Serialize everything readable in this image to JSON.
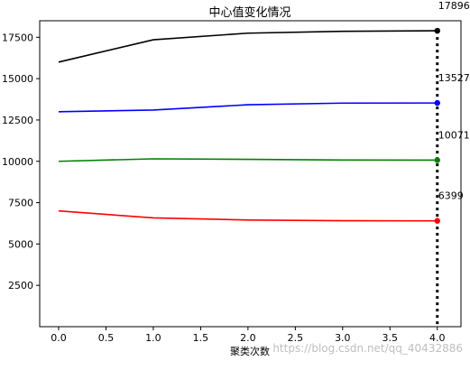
{
  "chart_data": {
    "type": "line",
    "title": "中心值变化情况",
    "xlabel": "聚类次数",
    "ylabel": "",
    "x": [
      0,
      1,
      2,
      3,
      4
    ],
    "xlim": [
      -0.2,
      4.25
    ],
    "ylim": [
      0,
      18500
    ],
    "x_ticks": [
      0.0,
      0.5,
      1.0,
      1.5,
      2.0,
      2.5,
      3.0,
      3.5,
      4.0
    ],
    "x_tick_labels": [
      "0.0",
      "0.5",
      "1.0",
      "1.5",
      "2.0",
      "2.5",
      "3.0",
      "3.5",
      "4.0"
    ],
    "y_ticks": [
      2500,
      5000,
      7500,
      10000,
      12500,
      15000,
      17500
    ],
    "y_tick_labels": [
      "2500",
      "5000",
      "7500",
      "10000",
      "12500",
      "15000",
      "17500"
    ],
    "series": [
      {
        "color": "#000000",
        "values": [
          16000,
          17350,
          17750,
          17860,
          17896
        ]
      },
      {
        "color": "#0000ff",
        "values": [
          13000,
          13100,
          13420,
          13520,
          13527
        ]
      },
      {
        "color": "#008000",
        "values": [
          10000,
          10150,
          10120,
          10080,
          10071
        ]
      },
      {
        "color": "#ff0000",
        "values": [
          7000,
          6580,
          6450,
          6410,
          6399
        ]
      }
    ],
    "end_value_labels": [
      "17896",
      "13527",
      "10071",
      "6399"
    ],
    "vertical_marker": {
      "x": 4,
      "style": "dotted",
      "color": "#000000"
    },
    "grid": false,
    "legend": "none"
  },
  "watermark": "https://blog.csdn.net/qq_40432886"
}
